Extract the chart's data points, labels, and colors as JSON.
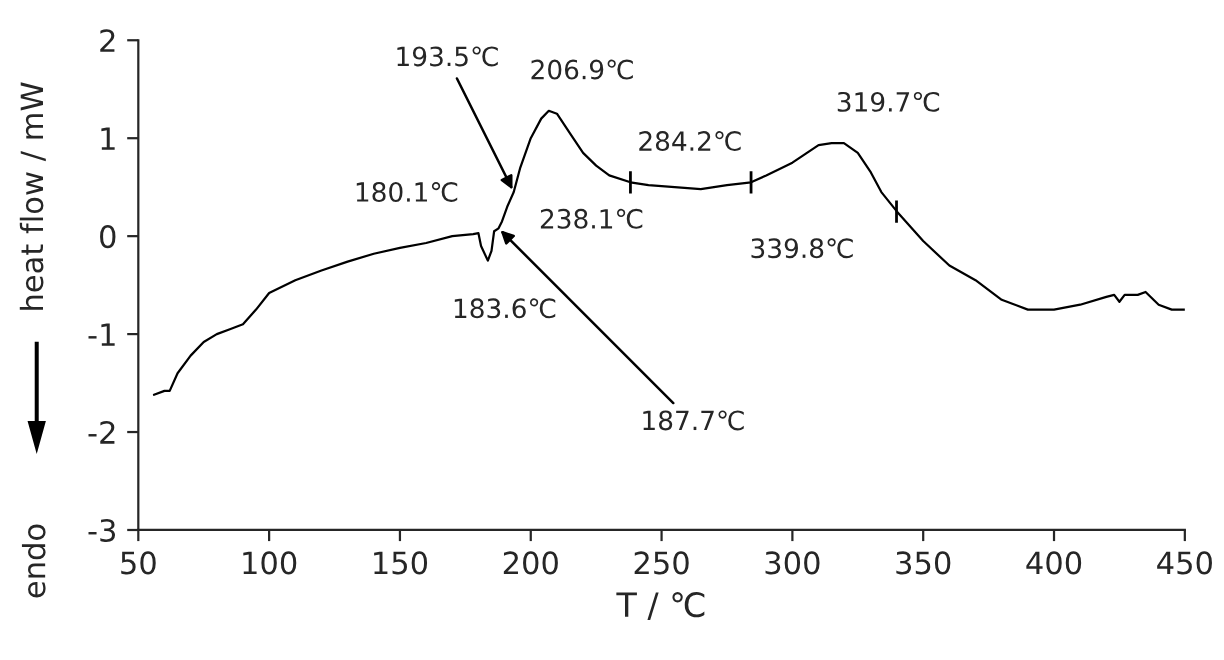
{
  "chart_data": {
    "type": "line",
    "xlabel": "T / ℃",
    "ylabel": "heat flow / mW",
    "x": [
      56,
      60,
      62,
      65,
      70,
      75,
      80,
      85,
      90,
      95,
      100,
      110,
      120,
      130,
      140,
      150,
      160,
      170,
      178,
      180,
      181,
      183.6,
      185,
      186,
      187.7,
      189,
      191,
      193.5,
      196,
      200,
      204,
      206.9,
      210,
      215,
      220,
      225,
      230,
      238.1,
      245,
      255,
      265,
      275,
      284.2,
      290,
      300,
      310,
      315,
      319.7,
      325,
      330,
      334,
      340,
      350,
      360,
      370,
      380,
      390,
      400,
      410,
      420,
      423,
      425,
      427,
      432,
      435,
      440,
      445,
      450
    ],
    "series": [
      {
        "color": "#000000",
        "values": [
          -1.62,
          -1.58,
          -1.58,
          -1.4,
          -1.22,
          -1.08,
          -1.0,
          -0.95,
          -0.9,
          -0.75,
          -0.58,
          -0.45,
          -0.35,
          -0.26,
          -0.18,
          -0.12,
          -0.07,
          0.0,
          0.02,
          0.03,
          -0.1,
          -0.25,
          -0.15,
          0.05,
          0.08,
          0.15,
          0.3,
          0.45,
          0.7,
          1.0,
          1.2,
          1.28,
          1.25,
          1.05,
          0.85,
          0.72,
          0.62,
          0.55,
          0.52,
          0.5,
          0.48,
          0.52,
          0.55,
          0.62,
          0.75,
          0.93,
          0.95,
          0.95,
          0.85,
          0.65,
          0.45,
          0.25,
          -0.05,
          -0.3,
          -0.45,
          -0.65,
          -0.75,
          -0.75,
          -0.7,
          -0.62,
          -0.6,
          -0.67,
          -0.6,
          -0.6,
          -0.57,
          -0.7,
          -0.75,
          -0.75
        ]
      }
    ],
    "xlim": [
      50,
      450
    ],
    "xticks": [
      50,
      100,
      150,
      200,
      250,
      300,
      350,
      400,
      450
    ],
    "ylim": [
      -3,
      2
    ],
    "yticks": [
      -3,
      -2,
      -1,
      0,
      1,
      2
    ],
    "grid": false,
    "legend": false,
    "marker": "none",
    "line_style": "solid",
    "annotations": [
      {
        "text": "180.1℃",
        "x": 180.1,
        "y": 0.03
      },
      {
        "text": "183.6℃",
        "x": 183.6,
        "y": -0.25
      },
      {
        "text": "193.5℃",
        "x": 193.5,
        "y": 0.45
      },
      {
        "text": "206.9℃",
        "x": 206.9,
        "y": 1.28
      },
      {
        "text": "187.7℃",
        "x": 187.7,
        "y": 0.08
      },
      {
        "text": "238.1℃",
        "x": 238.1,
        "y": 0.55
      },
      {
        "text": "284.2℃",
        "x": 284.2,
        "y": 0.55
      },
      {
        "text": "319.7℃",
        "x": 319.7,
        "y": 0.95
      },
      {
        "text": "339.8℃",
        "x": 339.8,
        "y": 0.25
      },
      "endo"
    ]
  }
}
